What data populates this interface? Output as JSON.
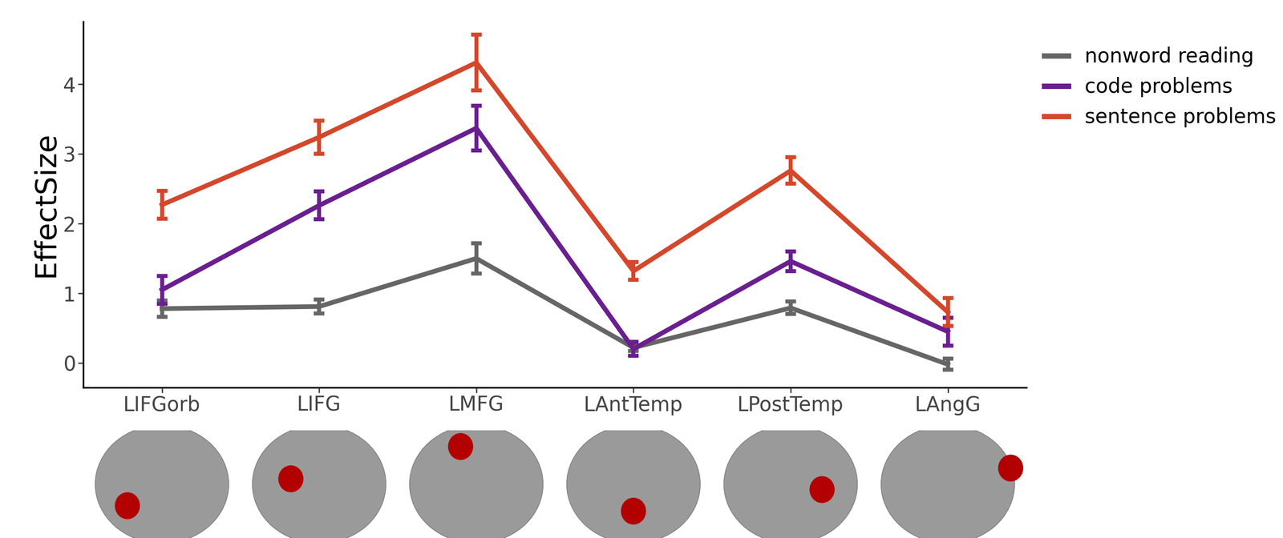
{
  "chart_data": {
    "type": "line",
    "y_label": "EffectSize",
    "categories": [
      "LIFGorb",
      "LIFG",
      "LMFG",
      "LAntTemp",
      "LPostTemp",
      "LAngG"
    ],
    "series": [
      {
        "name": "nonword reading",
        "color": "#666666",
        "values": [
          0.78,
          0.81,
          1.5,
          0.22,
          0.79,
          -0.02
        ],
        "errors": [
          0.12,
          0.1,
          0.22,
          0.05,
          0.09,
          0.08
        ]
      },
      {
        "name": "code problems",
        "color": "#6a1f8f",
        "values": [
          1.05,
          2.26,
          3.37,
          0.2,
          1.46,
          0.45
        ],
        "errors": [
          0.2,
          0.2,
          0.32,
          0.1,
          0.14,
          0.2
        ]
      },
      {
        "name": "sentence problems",
        "color": "#d4472b",
        "values": [
          2.27,
          3.24,
          4.31,
          1.32,
          2.76,
          0.73
        ],
        "errors": [
          0.2,
          0.24,
          0.4,
          0.13,
          0.19,
          0.2
        ]
      }
    ],
    "ylim": [
      -0.35,
      4.9
    ],
    "yticks": [
      0,
      1,
      2,
      3,
      4
    ],
    "grid": false,
    "legend": "upper left"
  }
}
